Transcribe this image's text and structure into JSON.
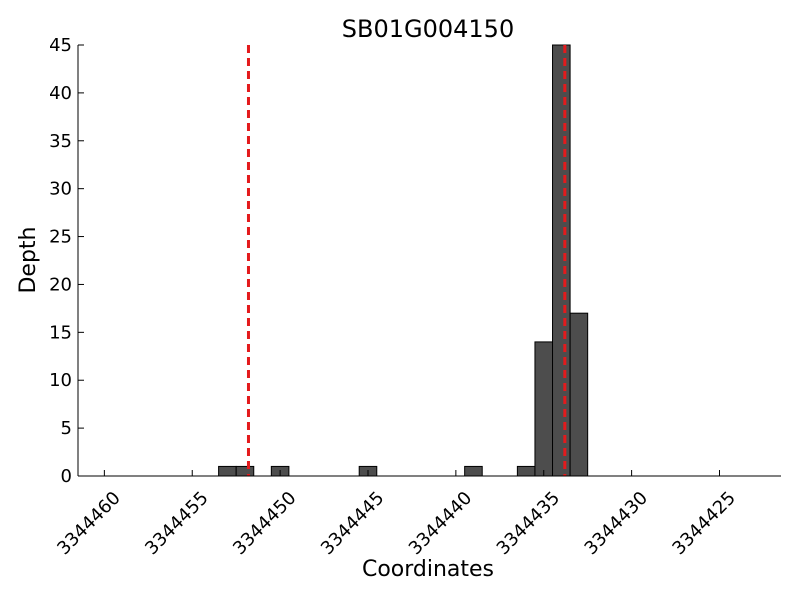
{
  "chart_data": {
    "type": "bar",
    "title": "SB01G004150",
    "xlabel": "Coordinates",
    "ylabel": "Depth",
    "xlim": [
      3344461.5,
      3344421.5
    ],
    "ylim": [
      0,
      45
    ],
    "x_inverted": true,
    "xticks": [
      3344460,
      3344455,
      3344450,
      3344445,
      3344440,
      3344435,
      3344430,
      3344425
    ],
    "yticks": [
      0,
      5,
      10,
      15,
      20,
      25,
      30,
      35,
      40,
      45
    ],
    "bars": [
      {
        "x": 3344453,
        "value": 1
      },
      {
        "x": 3344452,
        "value": 1
      },
      {
        "x": 3344450,
        "value": 1
      },
      {
        "x": 3344445,
        "value": 1
      },
      {
        "x": 3344439,
        "value": 1
      },
      {
        "x": 3344436,
        "value": 1
      },
      {
        "x": 3344435,
        "value": 14
      },
      {
        "x": 3344434,
        "value": 45
      },
      {
        "x": 3344433,
        "value": 17
      }
    ],
    "bar_color": "#4d4d4d",
    "bar_edge_color": "#000000",
    "reference_lines": [
      {
        "x": 3344451.8,
        "color": "#e41a1c",
        "style": "dashed"
      },
      {
        "x": 3344433.8,
        "color": "#e41a1c",
        "style": "dashed"
      }
    ],
    "grid": false,
    "legend": "none"
  }
}
